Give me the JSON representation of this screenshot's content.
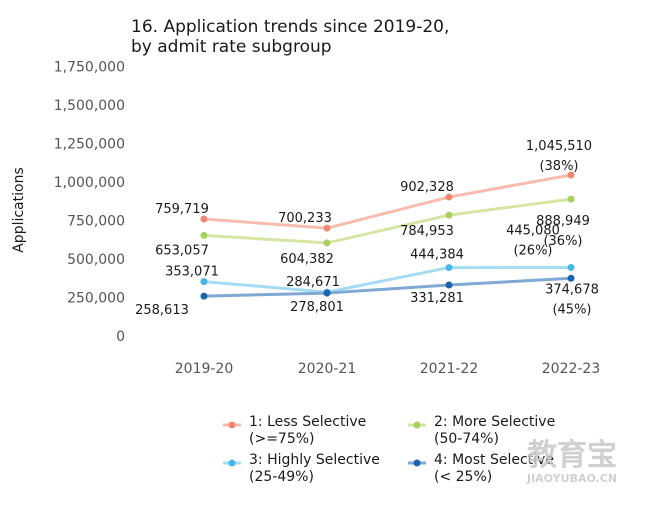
{
  "chart_data": {
    "type": "line",
    "title_line1": "16. Application trends since 2019-20,",
    "title_line2": "by admit rate subgroup",
    "ylabel": "Applications",
    "xlabel": "",
    "categories": [
      "2019-20",
      "2020-21",
      "2021-22",
      "2022-23"
    ],
    "ylim": [
      0,
      1750000
    ],
    "y_ticks": [
      0,
      250000,
      500000,
      750000,
      1000000,
      1250000,
      1500000,
      1750000
    ],
    "y_tick_labels": [
      "0",
      "250,000",
      "500,000",
      "750,000",
      "1,000,000",
      "1,250,000",
      "1,500,000",
      "1,750,000"
    ],
    "grid": false,
    "legend_position": "bottom",
    "series": [
      {
        "legend_line1": "1: Less Selective",
        "legend_line2": "(>=75%)",
        "values": [
          759719,
          700233,
          902328,
          1045510
        ],
        "labels": [
          "759,719",
          "700,233",
          "902,328",
          "1,045,510"
        ],
        "change_label": "(38%)",
        "line_color": "#f7bcae",
        "marker_color": "#f08870"
      },
      {
        "legend_line1": "2: More Selective",
        "legend_line2": "(50-74%)",
        "values": [
          653057,
          604382,
          784953,
          888949
        ],
        "labels": [
          "653,057",
          "604,382",
          "784,953",
          "888,949"
        ],
        "change_label": "(36%)",
        "line_color": "#d4e6a4",
        "marker_color": "#a8d05c"
      },
      {
        "legend_line1": "3: Highly Selective",
        "legend_line2": "(25-49%)",
        "values": [
          353071,
          284671,
          444384,
          445080
        ],
        "labels": [
          "353,071",
          "284,671",
          "444,384",
          "445,080"
        ],
        "change_label": "(26%)",
        "line_color": "#a6dcf2",
        "marker_color": "#45b8e8"
      },
      {
        "legend_line1": "4: Most Selective",
        "legend_line2": "(< 25%)",
        "values": [
          258613,
          278801,
          331281,
          374678
        ],
        "labels": [
          "258,613",
          "278,801",
          "331,281",
          "374,678"
        ],
        "change_label": "(45%)",
        "line_color": "#7fa9d4",
        "marker_color": "#1b63ad"
      }
    ]
  },
  "watermark": {
    "main": "教育宝",
    "sub": "JIAOYUBAO.CN"
  }
}
